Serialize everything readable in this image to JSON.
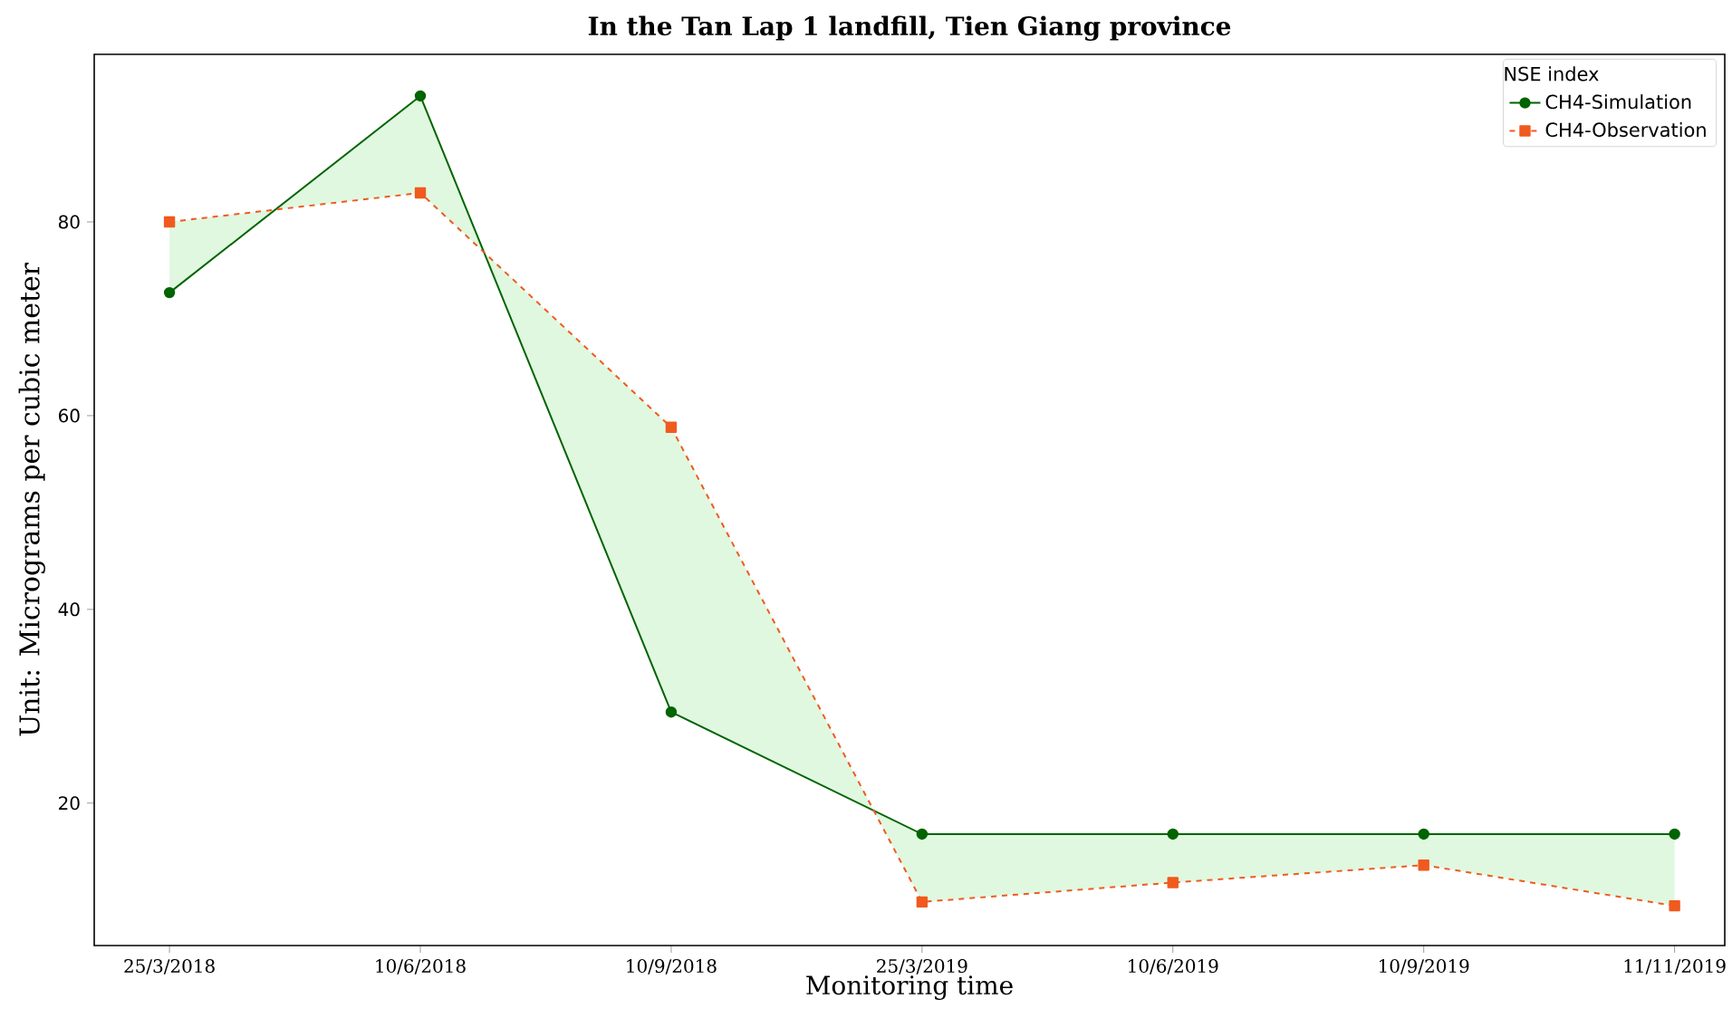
{
  "chart_data": {
    "type": "line",
    "title": "In the Tan Lap 1 landfill, Tien Giang province",
    "xlabel": "Monitoring time",
    "ylabel": "Unit: Micrograms per cubic meter",
    "legend_title": "NSE index",
    "categories": [
      "25/3/2018",
      "10/6/2018",
      "10/9/2018",
      "25/3/2019",
      "10/6/2019",
      "10/9/2019",
      "11/11/2019"
    ],
    "series": [
      {
        "name": "CH4-Simulation",
        "color": "#006400",
        "marker": "circle",
        "line_style": "solid",
        "values": [
          72.7,
          93.0,
          29.4,
          16.8,
          16.8,
          16.8,
          16.8
        ],
        "lower": [
          80.0,
          83.0,
          58.8,
          9.8,
          11.8,
          13.6,
          9.4
        ],
        "upper": [
          72.7,
          93.0,
          29.4,
          16.8,
          16.8,
          16.8,
          16.8
        ]
      },
      {
        "name": "CH4-Observation",
        "color": "#f05a1e",
        "marker": "square",
        "line_style": "dashed",
        "values": [
          80.0,
          83.0,
          58.8,
          9.8,
          11.8,
          13.6,
          9.4
        ]
      }
    ],
    "ylim": [
      5.3,
      97.3
    ],
    "yticks": [
      20,
      40,
      60,
      80
    ],
    "grid": false,
    "legend": "top right"
  }
}
